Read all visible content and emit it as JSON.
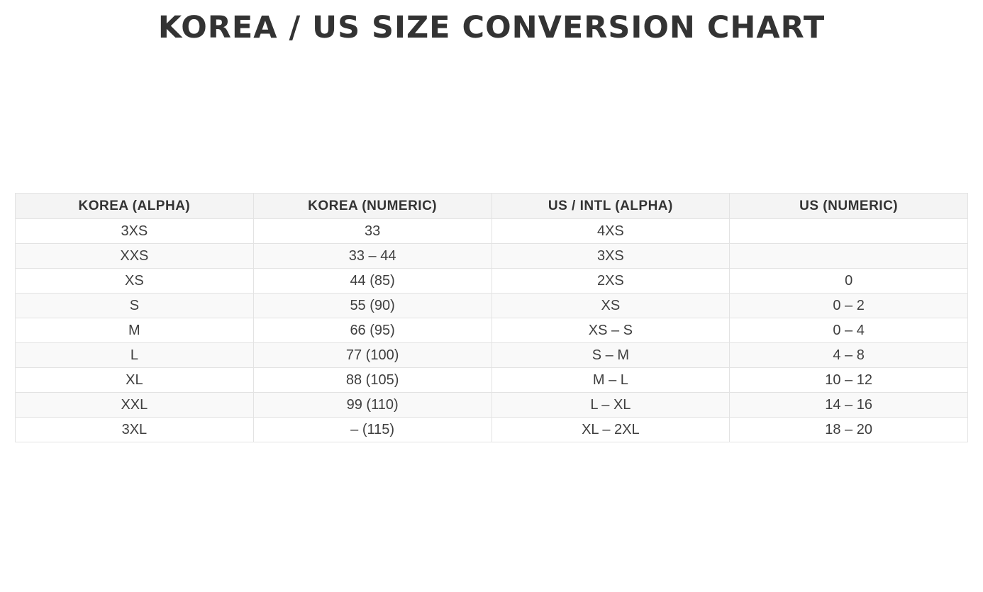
{
  "title": "KOREA / US SIZE CONVERSION CHART",
  "colors": {
    "background": "#ffffff",
    "title_text": "#333333",
    "header_bg": "#f4f4f4",
    "row_alt_bg": "#f9f9f9",
    "cell_border": "#e3e3e3",
    "cell_text": "#3f3f3f"
  },
  "chart_data": {
    "type": "table",
    "title": "KOREA / US SIZE CONVERSION CHART",
    "columns": [
      "KOREA (ALPHA)",
      "KOREA (NUMERIC)",
      "US / INTL (ALPHA)",
      "US (NUMERIC)"
    ],
    "rows": [
      [
        "3XS",
        "33",
        "4XS",
        ""
      ],
      [
        "XXS",
        "33 – 44",
        "3XS",
        ""
      ],
      [
        "XS",
        "44 (85)",
        "2XS",
        "0"
      ],
      [
        "S",
        "55 (90)",
        "XS",
        "0 – 2"
      ],
      [
        "M",
        "66 (95)",
        "XS – S",
        "0 – 4"
      ],
      [
        "L",
        "77 (100)",
        "S – M",
        "4 – 8"
      ],
      [
        "XL",
        "88 (105)",
        "M – L",
        "10 – 12"
      ],
      [
        "XXL",
        "99 (110)",
        "L – XL",
        "14 – 16"
      ],
      [
        "3XL",
        "– (115)",
        "XL – 2XL",
        "18 – 20"
      ]
    ]
  }
}
